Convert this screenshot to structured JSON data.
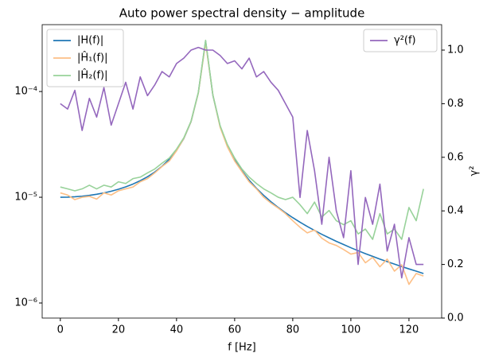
{
  "chart_data": {
    "type": "line",
    "title": "Auto power spectral density − amplitude",
    "x_label": "f [Hz]",
    "y2_label": "γ²",
    "x": [
      0,
      2.5,
      5,
      7.5,
      10,
      12.5,
      15,
      17.5,
      20,
      22.5,
      25,
      27.5,
      30,
      32.5,
      35,
      37.5,
      40,
      42.5,
      45,
      47.5,
      50,
      52.5,
      55,
      57.5,
      60,
      62.5,
      65,
      67.5,
      70,
      72.5,
      75,
      77.5,
      80,
      82.5,
      85,
      87.5,
      90,
      92.5,
      95,
      97.5,
      100,
      102.5,
      105,
      107.5,
      110,
      112.5,
      115,
      117.5,
      120,
      122.5,
      125
    ],
    "series": [
      {
        "name": "|H(f)|",
        "color": "#1f77b4",
        "axis": "y",
        "values": [
          1e-05,
          1.0025e-05,
          1.0101e-05,
          1.023e-05,
          1.0417e-05,
          1.0667e-05,
          1.0989e-05,
          1.1396e-05,
          1.1905e-05,
          1.2539e-05,
          1.3333e-05,
          1.4337e-05,
          1.5625e-05,
          1.7316e-05,
          1.9608e-05,
          2.2857e-05,
          2.77e-05,
          3.585e-05,
          5.198e-05,
          9.756e-05,
          0.0003,
          9.23e-05,
          4.69e-05,
          3.079e-05,
          2.263e-05,
          1.776e-05,
          1.449e-05,
          1.216e-05,
          1.042e-05,
          9.07e-06,
          8e-06,
          7.13e-06,
          6.41e-06,
          5.81e-06,
          5.29e-06,
          4.85e-06,
          4.46e-06,
          4.13e-06,
          3.83e-06,
          3.57e-06,
          3.33e-06,
          3.12e-06,
          2.93e-06,
          2.76e-06,
          2.6e-06,
          2.46e-06,
          2.33e-06,
          2.21e-06,
          2.1e-06,
          2e-06,
          1.9e-06
        ]
      },
      {
        "name": "|Ĥ₁(f)|",
        "color": "#fdbf86",
        "axis": "y",
        "values": [
          1.1e-05,
          1.05e-05,
          9.5e-06,
          1e-05,
          1.02e-05,
          9.6e-06,
          1.1e-05,
          1.05e-05,
          1.15e-05,
          1.2e-05,
          1.25e-05,
          1.4e-05,
          1.5e-05,
          1.7e-05,
          1.95e-05,
          2.2e-05,
          2.75e-05,
          3.6e-05,
          5.2e-05,
          9.7e-05,
          0.00029,
          9.3e-05,
          4.6e-05,
          3e-05,
          2.2e-05,
          1.75e-05,
          1.4e-05,
          1.2e-05,
          1e-05,
          8.8e-06,
          7.9e-06,
          7e-06,
          6e-06,
          5.2e-06,
          4.6e-06,
          4.9e-06,
          4.1e-06,
          3.7e-06,
          3.5e-06,
          3.2e-06,
          2.9e-06,
          3e-06,
          2.4e-06,
          2.7e-06,
          2.2e-06,
          2.6e-06,
          2e-06,
          2.3e-06,
          1.5e-06,
          1.9e-06,
          1.8e-06
        ]
      },
      {
        "name": "|Ĥ₂(f)|",
        "color": "#98d29a",
        "axis": "y",
        "values": [
          1.25e-05,
          1.2e-05,
          1.15e-05,
          1.2e-05,
          1.3e-05,
          1.2e-05,
          1.3e-05,
          1.25e-05,
          1.4e-05,
          1.35e-05,
          1.5e-05,
          1.55e-05,
          1.7e-05,
          1.85e-05,
          2.1e-05,
          2.35e-05,
          2.85e-05,
          3.65e-05,
          5.25e-05,
          9.8e-05,
          0.000305,
          9.3e-05,
          4.75e-05,
          3.15e-05,
          2.35e-05,
          1.85e-05,
          1.55e-05,
          1.35e-05,
          1.2e-05,
          1.1e-05,
          1e-05,
          9.5e-06,
          1e-05,
          8.5e-06,
          7e-06,
          9e-06,
          6.5e-06,
          7.5e-06,
          6e-06,
          5.5e-06,
          6e-06,
          4.5e-06,
          5e-06,
          4e-06,
          7e-06,
          4.5e-06,
          5e-06,
          4e-06,
          8e-06,
          6e-06,
          1.2e-05
        ]
      },
      {
        "name": "γ²(f)",
        "color": "#9467bd",
        "axis": "y2",
        "values": [
          0.8,
          0.78,
          0.85,
          0.7,
          0.82,
          0.75,
          0.86,
          0.72,
          0.8,
          0.88,
          0.78,
          0.9,
          0.83,
          0.87,
          0.92,
          0.9,
          0.95,
          0.97,
          1.0,
          1.01,
          1.0,
          1.0,
          0.98,
          0.95,
          0.96,
          0.93,
          0.97,
          0.9,
          0.92,
          0.88,
          0.85,
          0.8,
          0.75,
          0.45,
          0.7,
          0.55,
          0.35,
          0.6,
          0.4,
          0.3,
          0.55,
          0.2,
          0.45,
          0.35,
          0.5,
          0.25,
          0.35,
          0.15,
          0.3,
          0.2,
          0.2
        ]
      }
    ],
    "xlim": [
      -6.25,
      131.25
    ],
    "xticks": [
      0,
      20,
      40,
      60,
      80,
      100,
      120
    ],
    "ylim": [
      7.2e-07,
      0.000429
    ],
    "yscale": "log",
    "yticks": [
      {
        "value": 1e-06,
        "label": "10⁻⁶"
      },
      {
        "value": 1e-05,
        "label": "10⁻⁵"
      },
      {
        "value": 0.0001,
        "label": "10⁻⁴"
      }
    ],
    "y2lim": [
      0,
      1.095
    ],
    "y2ticks": [
      {
        "value": 0,
        "label": "0.0"
      },
      {
        "value": 0.2,
        "label": "0.2"
      },
      {
        "value": 0.4,
        "label": "0.4"
      },
      {
        "value": 0.6,
        "label": "0.6"
      },
      {
        "value": 0.8,
        "label": "0.8"
      },
      {
        "value": 1,
        "label": "1.0"
      }
    ],
    "grid": false,
    "legend": "upper left",
    "y2legend": "upper right"
  }
}
